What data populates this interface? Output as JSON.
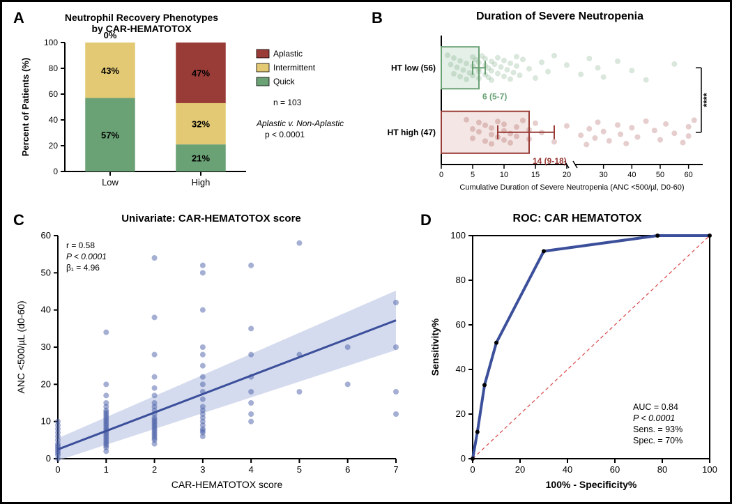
{
  "panelA": {
    "label": "A",
    "title_line1": "Neutrophil Recovery Phenotypes",
    "title_line2": "by CAR-HEMATOTOX",
    "title_fontsize": 14,
    "ylabel": "Percent of Patients (%)",
    "label_fontsize": 13,
    "categories": [
      "Low",
      "High"
    ],
    "segments": {
      "Low": {
        "Quick": 57,
        "Intermittent": 43,
        "Aplastic": 0
      },
      "High": {
        "Quick": 21,
        "Intermittent": 32,
        "Aplastic": 47
      }
    },
    "segment_labels": {
      "Low": {
        "Quick": "57%",
        "Intermittent": "43%",
        "Aplastic": "0%"
      },
      "High": {
        "Quick": "21%",
        "Intermittent": "32%",
        "Aplastic": "47%"
      }
    },
    "colors": {
      "Quick": "#6aa175",
      "Intermittent": "#e3c974",
      "Aplastic": "#993b36"
    },
    "legend_order": [
      "Aplastic",
      "Intermittent",
      "Quick"
    ],
    "n_text": "n = 103",
    "stat_line1": "Aplastic v. Non-Aplastic",
    "stat_line2": "p < 0.0001",
    "ylim": [
      0,
      100
    ],
    "ytick_step": 20,
    "bar_width": 0.55,
    "axis_color": "#000000",
    "text_color": "#000000"
  },
  "panelB": {
    "label": "B",
    "title": "Duration of Severe Neutropenia",
    "title_fontsize": 16,
    "groups": [
      {
        "name": "HT low (56)",
        "mean": 6,
        "ci": [
          5,
          7
        ],
        "color": "#6aa175",
        "fill": "#e5f0e8",
        "anno": "6 (5-7)",
        "points": [
          1,
          1.5,
          2,
          2,
          2.5,
          3,
          3,
          3.5,
          4,
          4,
          4.5,
          5,
          5,
          5,
          5.5,
          6,
          6,
          6,
          6,
          6.5,
          7,
          7,
          7,
          7.5,
          7.5,
          8,
          8,
          8,
          8.5,
          9,
          9,
          9.5,
          10,
          10,
          10.5,
          11,
          11,
          11.5,
          12,
          12,
          12.5,
          13,
          14,
          15,
          16,
          17,
          18,
          20,
          22,
          25,
          28,
          30,
          35,
          40,
          45,
          55
        ]
      },
      {
        "name": "HT high (47)",
        "mean": 14,
        "ci": [
          9,
          18
        ],
        "color": "#993b36",
        "fill": "#f4e6e4",
        "anno": "14 (9-18)",
        "points": [
          4,
          5,
          5,
          6,
          6,
          7,
          7,
          8,
          8,
          8,
          9,
          9,
          10,
          10,
          10,
          11,
          11,
          12,
          12,
          13,
          14,
          14,
          15,
          16,
          18,
          20,
          22,
          24,
          25,
          27,
          28,
          30,
          32,
          35,
          36,
          38,
          40,
          42,
          45,
          48,
          50,
          52,
          55,
          58,
          60,
          60,
          62
        ]
      }
    ],
    "xlabel": "Cumulative Duration of Severe Neutropenia (ANC <500/µl, D0-60)",
    "xlim": [
      0,
      65
    ],
    "xbreak": 20,
    "xticks_before": [
      0,
      5,
      10,
      15,
      20
    ],
    "xticks_after": [
      20,
      30,
      40,
      50,
      60
    ],
    "signif": "****",
    "point_opacity": 0.25
  },
  "panelC": {
    "label": "C",
    "title": "Univariate: CAR-HEMATOTOX score",
    "title_fontsize": 15,
    "xlabel": "CAR-HEMATOTOX score",
    "ylabel": "ANC <500/µL (d0-60)",
    "xlim": [
      0,
      7
    ],
    "ylim": [
      0,
      60
    ],
    "xtick_step": 1,
    "ytick_step": 10,
    "reg_intercept": 2.5,
    "reg_slope": 4.96,
    "ci_half_width_start": 3,
    "ci_half_width_end": 8,
    "line_color": "#3b4f9b",
    "ci_fill": "#b9c3e3",
    "point_color": "#4a5fa8",
    "point_opacity": 0.5,
    "stats_lines": [
      "r = 0.58",
      "P < 0.0001",
      "β₁ = 4.96"
    ],
    "points": [
      [
        0,
        0
      ],
      [
        0,
        1
      ],
      [
        0,
        1.5
      ],
      [
        0,
        2
      ],
      [
        0,
        2.5
      ],
      [
        0,
        3
      ],
      [
        0,
        3.5
      ],
      [
        0,
        4
      ],
      [
        0,
        5
      ],
      [
        0,
        6
      ],
      [
        0,
        7
      ],
      [
        0,
        8
      ],
      [
        0,
        9
      ],
      [
        0,
        10
      ],
      [
        1,
        2
      ],
      [
        1,
        3
      ],
      [
        1,
        3.5
      ],
      [
        1,
        4
      ],
      [
        1,
        4.5
      ],
      [
        1,
        5
      ],
      [
        1,
        5.5
      ],
      [
        1,
        6
      ],
      [
        1,
        6.5
      ],
      [
        1,
        7
      ],
      [
        1,
        7.5
      ],
      [
        1,
        8
      ],
      [
        1,
        8.5
      ],
      [
        1,
        9
      ],
      [
        1,
        9.5
      ],
      [
        1,
        10
      ],
      [
        1,
        10.5
      ],
      [
        1,
        11
      ],
      [
        1,
        11.5
      ],
      [
        1,
        12
      ],
      [
        1,
        12.5
      ],
      [
        1,
        13
      ],
      [
        1,
        14
      ],
      [
        1,
        15
      ],
      [
        1,
        17
      ],
      [
        1,
        20
      ],
      [
        1,
        34
      ],
      [
        2,
        4
      ],
      [
        2,
        5
      ],
      [
        2,
        5.5
      ],
      [
        2,
        6
      ],
      [
        2,
        6.5
      ],
      [
        2,
        7
      ],
      [
        2,
        7.5
      ],
      [
        2,
        8
      ],
      [
        2,
        8.5
      ],
      [
        2,
        9
      ],
      [
        2,
        9.5
      ],
      [
        2,
        10
      ],
      [
        2,
        10.5
      ],
      [
        2,
        11
      ],
      [
        2,
        12
      ],
      [
        2,
        13
      ],
      [
        2,
        14
      ],
      [
        2,
        15
      ],
      [
        2,
        17
      ],
      [
        2,
        19
      ],
      [
        2,
        22
      ],
      [
        2,
        28
      ],
      [
        2,
        38
      ],
      [
        2,
        54
      ],
      [
        3,
        6
      ],
      [
        3,
        7
      ],
      [
        3,
        7.5
      ],
      [
        3,
        8
      ],
      [
        3,
        9
      ],
      [
        3,
        10
      ],
      [
        3,
        11
      ],
      [
        3,
        12
      ],
      [
        3,
        13
      ],
      [
        3,
        14
      ],
      [
        3,
        16
      ],
      [
        3,
        18
      ],
      [
        3,
        20
      ],
      [
        3,
        22
      ],
      [
        3,
        25
      ],
      [
        3,
        28
      ],
      [
        3,
        30
      ],
      [
        3,
        40
      ],
      [
        3,
        50
      ],
      [
        3,
        52
      ],
      [
        4,
        10
      ],
      [
        4,
        12
      ],
      [
        4,
        15
      ],
      [
        4,
        18
      ],
      [
        4,
        22
      ],
      [
        4,
        28
      ],
      [
        4,
        35
      ],
      [
        4,
        52
      ],
      [
        5,
        18
      ],
      [
        5,
        28
      ],
      [
        5,
        58
      ],
      [
        6,
        20
      ],
      [
        6,
        30
      ],
      [
        7,
        12
      ],
      [
        7,
        18
      ],
      [
        7,
        30
      ],
      [
        7,
        42
      ]
    ]
  },
  "panelD": {
    "label": "D",
    "title": "ROC: CAR HEMATOTOX",
    "title_fontsize": 16,
    "xlabel": "100% - Specificity%",
    "ylabel": "Sensitivity%",
    "xlim": [
      0,
      100
    ],
    "ylim": [
      0,
      100
    ],
    "tick_step": 20,
    "roc_points": [
      [
        0,
        0
      ],
      [
        2,
        12
      ],
      [
        5,
        33
      ],
      [
        10,
        52
      ],
      [
        30,
        93
      ],
      [
        78,
        100
      ],
      [
        100,
        100
      ]
    ],
    "line_color": "#3b4f9b",
    "diag_color": "#d94545",
    "stats_lines": [
      "AUC = 0.84",
      "P < 0.0001",
      "Sens. = 93%",
      "Spec. = 70%"
    ]
  }
}
